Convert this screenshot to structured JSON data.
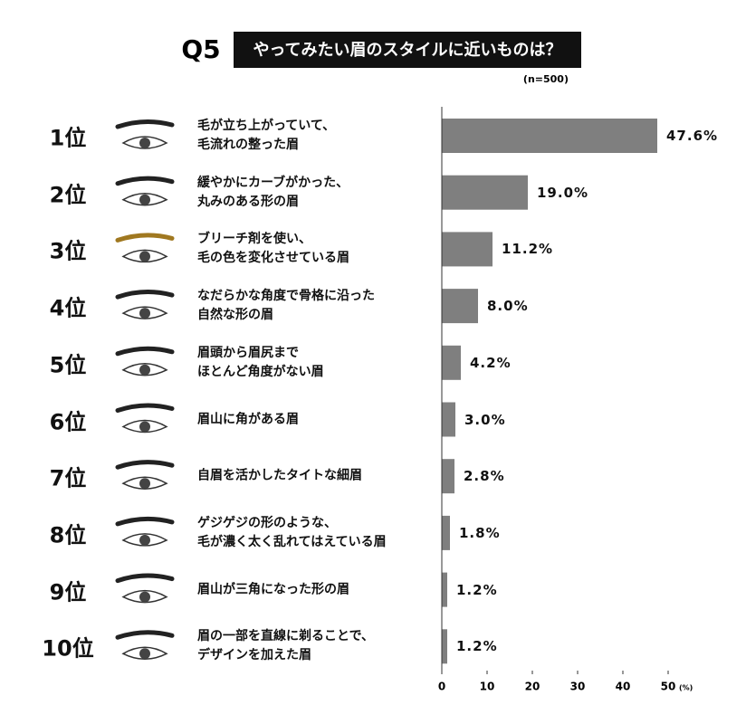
{
  "chart_data": {
    "type": "bar",
    "orientation": "horizontal",
    "question": "Q5",
    "title": "やってみたい眉のスタイルに近いものは？",
    "note": "(n=500)",
    "ranks": [
      "1位",
      "2位",
      "3位",
      "4位",
      "5位",
      "6位",
      "7位",
      "8位",
      "9位",
      "10位"
    ],
    "categories": [
      "毛が立ち上がっていて、\n毛流れの整った眉",
      "緩やかにカーブがかった、\n丸みのある形の眉",
      "ブリーチ剤を使い、\n毛の色を変化させている眉",
      "なだらかな角度で骨格に沿った\n自然な形の眉",
      "眉頭から眉尻まで\nほとんど角度がない眉",
      "眉山に角がある眉",
      "自眉を活かしたタイトな細眉",
      "ゲジゲジの形のような、\n毛が濃く太く乱れてはえている眉",
      "眉山が三角になった形の眉",
      "眉の一部を直線に剃ることで、\nデザインを加えた眉"
    ],
    "values": [
      47.6,
      19.0,
      11.2,
      8.0,
      4.2,
      3.0,
      2.8,
      1.8,
      1.2,
      1.2
    ],
    "value_labels": [
      "47.6%",
      "19.0%",
      "11.2%",
      "8.0%",
      "4.2%",
      "3.0%",
      "2.8%",
      "1.8%",
      "1.2%",
      "1.2%"
    ],
    "color": "#7f7f7f",
    "xlim": [
      0,
      50
    ],
    "xticks": [
      0,
      10,
      20,
      30,
      40,
      50
    ],
    "x_unit": "(%)"
  }
}
